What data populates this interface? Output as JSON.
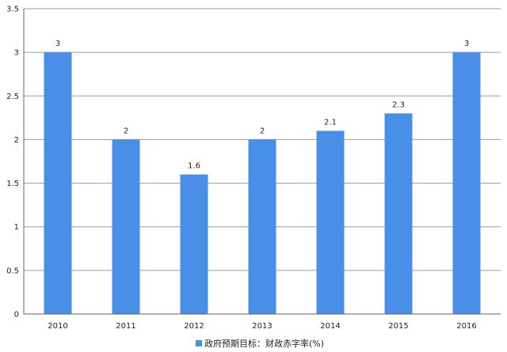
{
  "chart_data": {
    "type": "bar",
    "categories": [
      "2010",
      "2011",
      "2012",
      "2013",
      "2014",
      "2015",
      "2016"
    ],
    "series": [
      {
        "name": "政府预期目标：财政赤字率(%)",
        "values": [
          3,
          2,
          1.6,
          2,
          2.1,
          2.3,
          3
        ],
        "color": "#4a8fe7"
      }
    ],
    "data_labels": [
      "3",
      "2",
      "1.6",
      "2",
      "2.1",
      "2.3",
      "3"
    ],
    "ylim": [
      0,
      3.5
    ],
    "yticks": [
      "0",
      "0.5",
      "1",
      "1.5",
      "2",
      "2.5",
      "3",
      "3.5"
    ],
    "grid": true,
    "legend_position": "bottom-center",
    "gridline_color": "#9a9a9a",
    "axis_color": "#666666"
  }
}
